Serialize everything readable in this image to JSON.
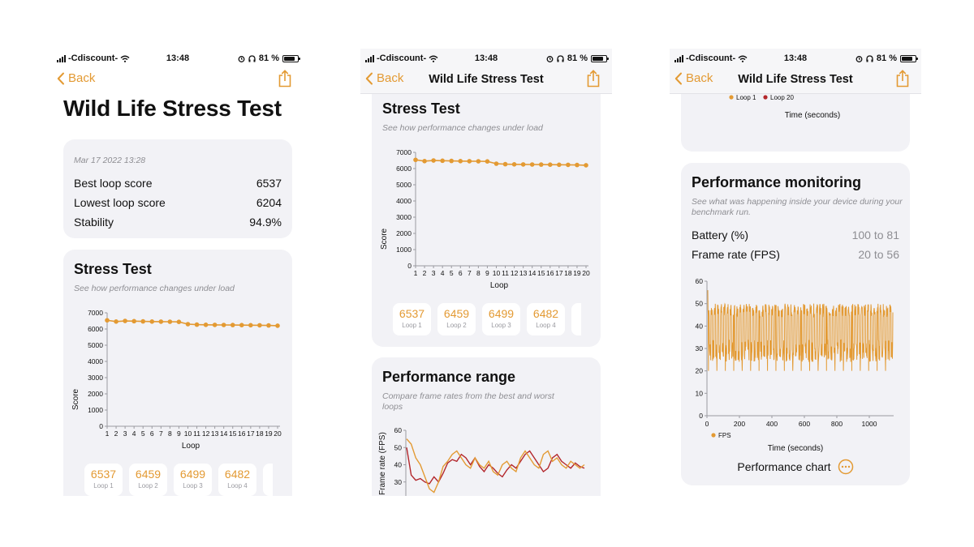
{
  "status_bar": {
    "carrier": "-Cdiscount-",
    "time": "13:48",
    "battery": "81 %",
    "battery_level": 0.81
  },
  "nav": {
    "back_label": "Back",
    "title": "Wild Life Stress Test"
  },
  "page_title": "Wild Life Stress Test",
  "summary": {
    "date": "Mar 17 2022 13:28",
    "rows": [
      {
        "label": "Best loop score",
        "value": "6537"
      },
      {
        "label": "Lowest loop score",
        "value": "6204"
      },
      {
        "label": "Stability",
        "value": "94.9%"
      }
    ]
  },
  "stress_test": {
    "title": "Stress Test",
    "subtitle": "See how performance changes under load"
  },
  "loops": [
    {
      "score": "6537",
      "label": "Loop 1"
    },
    {
      "score": "6459",
      "label": "Loop 2"
    },
    {
      "score": "6499",
      "label": "Loop 3"
    },
    {
      "score": "6482",
      "label": "Loop 4"
    },
    {
      "score": "6",
      "label": ""
    }
  ],
  "performance_range": {
    "title": "Performance range",
    "subtitle": "Compare frame rates from the best and worst loops"
  },
  "performance_monitoring": {
    "title": "Performance monitoring",
    "subtitle": "See what was happening inside your device during your benchmark run.",
    "rows": [
      {
        "label": "Battery (%)",
        "value": "100 to 81"
      },
      {
        "label": "Frame rate (FPS)",
        "value": "20 to 56"
      }
    ],
    "link_label": "Performance chart"
  },
  "colors": {
    "accent": "#e39a33",
    "dark_red": "#b3262b",
    "card": "#f2f2f6"
  },
  "chart_data": [
    {
      "id": "stress",
      "type": "line",
      "title": "Stress Test",
      "xlabel": "Loop",
      "ylabel": "Score",
      "x": [
        1,
        2,
        3,
        4,
        5,
        6,
        7,
        8,
        9,
        10,
        11,
        12,
        13,
        14,
        15,
        16,
        17,
        18,
        19,
        20
      ],
      "xtick_labels": [
        "1",
        "2",
        "3",
        "4",
        "5",
        "6",
        "7",
        "8",
        "9",
        "10",
        "11",
        "12",
        "13",
        "14",
        "15",
        "16",
        "17",
        "18",
        "19",
        "20"
      ],
      "values": [
        6537,
        6459,
        6499,
        6482,
        6470,
        6460,
        6455,
        6450,
        6440,
        6300,
        6270,
        6260,
        6255,
        6250,
        6245,
        6240,
        6235,
        6230,
        6220,
        6204
      ],
      "ylim": [
        0,
        7000
      ],
      "yticks": [
        0,
        1000,
        2000,
        3000,
        4000,
        5000,
        6000,
        7000
      ]
    },
    {
      "id": "range",
      "type": "line",
      "title": "Performance range",
      "ylabel": "Frame rate (FPS)",
      "yticks_visible": [
        30,
        40,
        50,
        60
      ],
      "ylim": [
        20,
        60
      ],
      "series": [
        {
          "name": "Loop 1",
          "color": "#e39a33",
          "values": [
            55,
            52,
            44,
            40,
            33,
            26,
            24,
            30,
            39,
            42,
            46,
            48,
            44,
            40,
            38,
            44,
            40,
            38,
            42,
            36,
            34,
            40,
            42,
            38,
            36,
            44,
            48,
            44,
            40,
            38,
            46,
            48,
            42,
            44,
            40,
            38,
            42,
            40,
            38,
            40
          ]
        },
        {
          "name": "Loop 20",
          "color": "#b3262b",
          "values": [
            50,
            34,
            31,
            32,
            30,
            29,
            33,
            30,
            35,
            41,
            43,
            42,
            46,
            44,
            40,
            44,
            39,
            36,
            40,
            38,
            35,
            33,
            37,
            40,
            38,
            42,
            46,
            48,
            44,
            40,
            36,
            38,
            44,
            46,
            42,
            40,
            38,
            41,
            39,
            38
          ]
        }
      ]
    },
    {
      "id": "range_tail",
      "type": "line",
      "xlabel": "Time (seconds)",
      "xticks": [
        0,
        40,
        80,
        120,
        160,
        200,
        240
      ],
      "legend": [
        "Loop 1",
        "Loop 20"
      ]
    },
    {
      "id": "monitoring",
      "type": "line",
      "xlabel": "Time (seconds)",
      "xticks": [
        0,
        200,
        400,
        600,
        800,
        1000
      ],
      "xlim": [
        0,
        1150
      ],
      "yticks": [
        0,
        10,
        20,
        30,
        40,
        50,
        60
      ],
      "ylim": [
        0,
        60
      ],
      "series": [
        {
          "name": "FPS",
          "color": "#e39a33",
          "min": 20,
          "max": 56,
          "cycles": 58
        }
      ]
    }
  ]
}
